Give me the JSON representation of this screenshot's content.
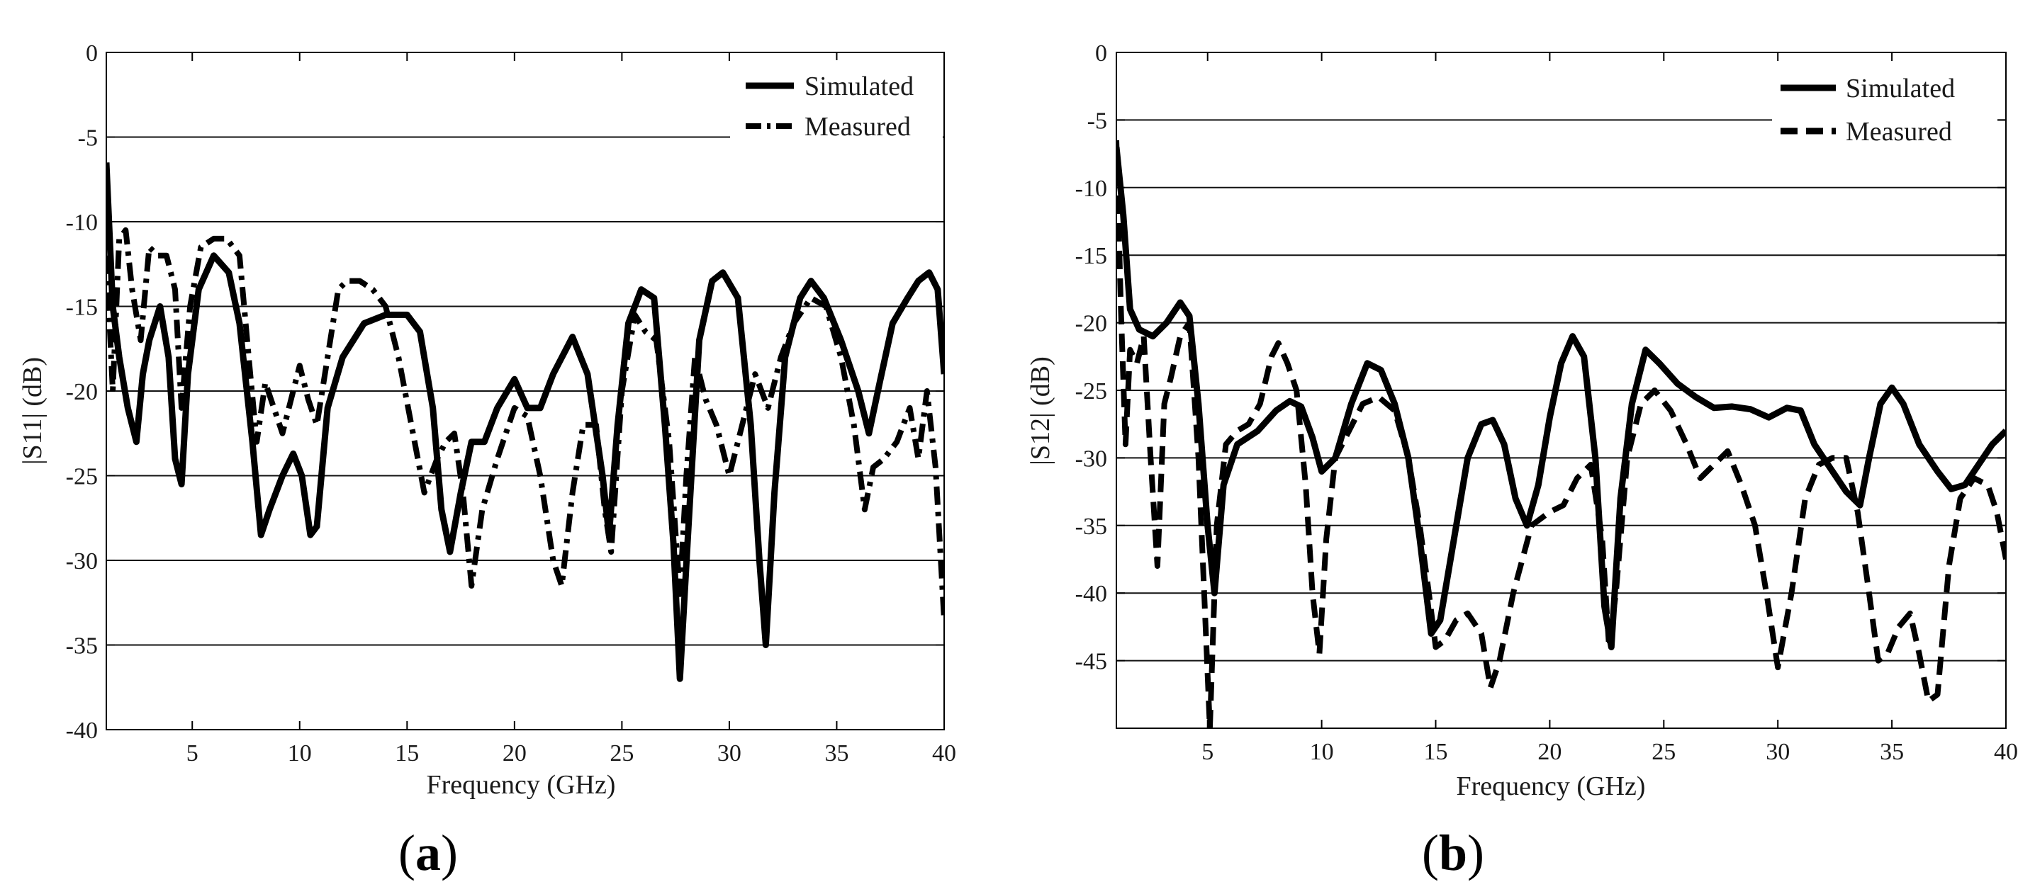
{
  "chart_data": [
    {
      "type": "line",
      "panel_label": {
        "open": "(",
        "letter": "a",
        "close": ")"
      },
      "xlabel": "Frequency (GHz)",
      "ylabel": "|S11| (dB)",
      "xlim": [
        1,
        40
      ],
      "ylim": [
        -40,
        0
      ],
      "xticks": [
        5,
        10,
        15,
        20,
        25,
        30,
        35,
        40
      ],
      "yticks": [
        0,
        -5,
        -10,
        -15,
        -20,
        -25,
        -30,
        -35,
        -40
      ],
      "grid": "horizontal",
      "legend_position": "top-right",
      "series": [
        {
          "name": "Simulated",
          "style": "solid",
          "x": [
            1,
            1.3,
            1.6,
            2.0,
            2.4,
            2.7,
            3.0,
            3.5,
            3.9,
            4.2,
            4.5,
            4.8,
            5.3,
            6.0,
            6.7,
            7.2,
            7.8,
            8.2,
            8.6,
            9.2,
            9.7,
            10.1,
            10.5,
            10.8,
            11.3,
            12.0,
            13.0,
            14.0,
            15.0,
            15.6,
            16.2,
            16.6,
            17.0,
            17.5,
            18.0,
            18.6,
            19.2,
            20.0,
            20.6,
            21.2,
            21.8,
            22.7,
            23.4,
            24.1,
            24.4,
            24.8,
            25.3,
            25.9,
            26.5,
            27.0,
            27.4,
            27.7,
            28.1,
            28.6,
            29.2,
            29.7,
            30.4,
            31.0,
            31.4,
            31.7,
            32.1,
            32.6,
            33.3,
            33.8,
            34.4,
            35.2,
            36.0,
            36.5,
            37.0,
            37.6,
            38.3,
            38.8,
            39.3,
            39.7,
            40.0
          ],
          "values": [
            -6.5,
            -15,
            -18,
            -21,
            -23,
            -19,
            -17,
            -15,
            -18,
            -24,
            -25.5,
            -19,
            -14,
            -12,
            -13,
            -16,
            -23,
            -28.5,
            -27,
            -25,
            -23.7,
            -25,
            -28.5,
            -28,
            -21,
            -18,
            -16,
            -15.5,
            -15.5,
            -16.5,
            -21,
            -27,
            -29.5,
            -26,
            -23,
            -23,
            -21,
            -19.3,
            -21,
            -21,
            -19,
            -16.8,
            -19,
            -25,
            -28.5,
            -22,
            -16,
            -14,
            -14.5,
            -22,
            -29,
            -37,
            -28,
            -17,
            -13.5,
            -13,
            -14.5,
            -22,
            -30,
            -35,
            -26,
            -18,
            -14.5,
            -13.5,
            -14.5,
            -17,
            -20,
            -22.5,
            -19.5,
            -16,
            -14.5,
            -13.5,
            -13,
            -14,
            -19
          ]
        },
        {
          "name": "Measured",
          "style": "dashdot",
          "x": [
            1,
            1.3,
            1.6,
            1.9,
            2.2,
            2.6,
            3.0,
            3.4,
            3.8,
            4.2,
            4.5,
            4.9,
            5.4,
            6.0,
            6.6,
            7.2,
            7.7,
            8.0,
            8.4,
            8.8,
            9.2,
            9.6,
            10.0,
            10.4,
            10.8,
            11.3,
            11.8,
            12.2,
            12.8,
            13.4,
            14.0,
            14.6,
            15.2,
            15.8,
            16.4,
            16.8,
            17.2,
            17.6,
            18.0,
            18.5,
            19.2,
            20.0,
            20.6,
            21.2,
            21.8,
            22.2,
            22.7,
            23.2,
            23.8,
            24.2,
            24.5,
            25.0,
            25.6,
            26.1,
            26.6,
            27.2,
            27.7,
            28.0,
            28.4,
            28.9,
            29.4,
            30.0,
            30.6,
            31.2,
            31.8,
            32.4,
            33.0,
            33.8,
            34.5,
            35.2,
            35.8,
            36.3,
            36.7,
            37.2,
            37.8,
            38.4,
            38.8,
            39.2,
            39.6,
            40.0
          ],
          "values": [
            -12,
            -20,
            -11,
            -10.5,
            -14,
            -17,
            -11.5,
            -12,
            -12,
            -14,
            -21,
            -15,
            -11.5,
            -11,
            -11,
            -12,
            -19,
            -23,
            -19.5,
            -21,
            -22.5,
            -20.5,
            -18.5,
            -20.5,
            -22,
            -18,
            -14,
            -13.5,
            -13.5,
            -14,
            -15,
            -18,
            -22,
            -26,
            -24,
            -23,
            -22.5,
            -26,
            -31.5,
            -27,
            -24,
            -21,
            -21.5,
            -25,
            -30,
            -31.5,
            -26,
            -22,
            -22,
            -27,
            -29.5,
            -20,
            -15.5,
            -16.5,
            -17,
            -23,
            -32,
            -25,
            -18,
            -20.5,
            -22,
            -25,
            -22,
            -19,
            -21,
            -18,
            -16,
            -14.5,
            -15,
            -18,
            -22,
            -27,
            -24.5,
            -24,
            -23,
            -21,
            -24,
            -20,
            -24.5,
            -33.5
          ]
        }
      ]
    },
    {
      "type": "line",
      "panel_label": {
        "open": "(",
        "letter": "b",
        "close": ")"
      },
      "xlabel": "Frequency (GHz)",
      "ylabel": "|S12| (dB)",
      "xlim": [
        1,
        40
      ],
      "ylim": [
        -50,
        0
      ],
      "xticks": [
        5,
        10,
        15,
        20,
        25,
        30,
        35,
        40
      ],
      "yticks": [
        0,
        -5,
        -10,
        -15,
        -20,
        -25,
        -30,
        -35,
        -40,
        -45
      ],
      "grid": "horizontal",
      "legend_position": "top-right",
      "series": [
        {
          "name": "Simulated",
          "style": "solid",
          "x": [
            1,
            1.3,
            1.6,
            2.0,
            2.6,
            3.2,
            3.8,
            4.2,
            4.6,
            5.0,
            5.3,
            5.7,
            6.3,
            7.2,
            8.0,
            8.6,
            9.1,
            9.6,
            10.0,
            10.6,
            11.3,
            12.0,
            12.6,
            13.2,
            13.8,
            14.3,
            14.8,
            15.2,
            15.8,
            16.4,
            17.0,
            17.5,
            18.0,
            18.5,
            19.0,
            19.5,
            20.0,
            20.5,
            21.0,
            21.5,
            22.0,
            22.4,
            22.7,
            23.1,
            23.6,
            24.2,
            24.8,
            25.6,
            26.4,
            27.2,
            28.0,
            28.8,
            29.6,
            30.4,
            31.0,
            31.6,
            32.4,
            33.0,
            33.6,
            34.0,
            34.5,
            35.0,
            35.5,
            36.2,
            37.0,
            37.6,
            38.2,
            38.8,
            39.4,
            40.0
          ],
          "values": [
            -7,
            -12,
            -19,
            -20.5,
            -21,
            -20,
            -18.5,
            -19.5,
            -26,
            -35,
            -40,
            -32,
            -29,
            -28,
            -26.5,
            -25.8,
            -26.2,
            -28.5,
            -31,
            -30,
            -26,
            -23,
            -23.5,
            -26,
            -30,
            -36,
            -43,
            -42,
            -36,
            -30,
            -27.5,
            -27.2,
            -29,
            -33,
            -35,
            -32,
            -27,
            -23,
            -21,
            -22.5,
            -30,
            -41,
            -44,
            -33,
            -26,
            -22,
            -23,
            -24.5,
            -25.5,
            -26.3,
            -26.2,
            -26.4,
            -27,
            -26.3,
            -26.5,
            -29,
            -31,
            -32.5,
            -33.5,
            -30,
            -26,
            -24.8,
            -26,
            -29,
            -31,
            -32.3,
            -32,
            -30.5,
            -29,
            -28
          ]
        },
        {
          "name": "Measured",
          "style": "dashed",
          "x": [
            1,
            1.2,
            1.4,
            1.6,
            1.9,
            2.2,
            2.5,
            2.8,
            3.1,
            3.4,
            3.8,
            4.2,
            4.6,
            4.9,
            5.1,
            5.4,
            5.8,
            6.3,
            6.8,
            7.3,
            7.8,
            8.1,
            8.5,
            8.9,
            9.3,
            9.6,
            9.9,
            10.2,
            10.6,
            11.2,
            11.8,
            12.5,
            13.2,
            13.8,
            14.3,
            14.7,
            15.0,
            15.4,
            15.9,
            16.4,
            17.0,
            17.4,
            17.8,
            18.4,
            19.2,
            20.0,
            20.6,
            21.2,
            21.8,
            22.3,
            22.6,
            22.9,
            23.4,
            24.0,
            24.6,
            25.3,
            26.0,
            26.6,
            27.2,
            27.8,
            28.4,
            29.0,
            29.5,
            30.0,
            30.6,
            31.2,
            31.8,
            32.4,
            33.0,
            33.5,
            34.0,
            34.4,
            34.8,
            35.3,
            35.8,
            36.2,
            36.6,
            37.0,
            37.5,
            38.0,
            38.6,
            39.2,
            39.6,
            40.0
          ],
          "values": [
            -6.5,
            -19,
            -29,
            -22,
            -23,
            -21,
            -30,
            -38,
            -26,
            -24,
            -21,
            -20,
            -30,
            -42,
            -50,
            -35,
            -29,
            -28,
            -27.5,
            -26,
            -22.5,
            -21.5,
            -23,
            -25,
            -32,
            -40,
            -44.5,
            -36,
            -30,
            -28,
            -26,
            -25.5,
            -26.5,
            -30,
            -35,
            -40,
            -44,
            -43.5,
            -42,
            -41.5,
            -43,
            -47,
            -45,
            -40,
            -35,
            -34,
            -33.5,
            -31.5,
            -30.5,
            -36,
            -44,
            -40,
            -30,
            -26,
            -25,
            -26.5,
            -29,
            -31.5,
            -30.5,
            -29.5,
            -32,
            -35,
            -40,
            -45.5,
            -40,
            -33,
            -30.5,
            -30,
            -30,
            -34,
            -40,
            -45,
            -44.5,
            -42.5,
            -41.5,
            -44.5,
            -48,
            -47.5,
            -38,
            -33,
            -31.5,
            -32,
            -34,
            -37.5
          ]
        }
      ]
    }
  ]
}
